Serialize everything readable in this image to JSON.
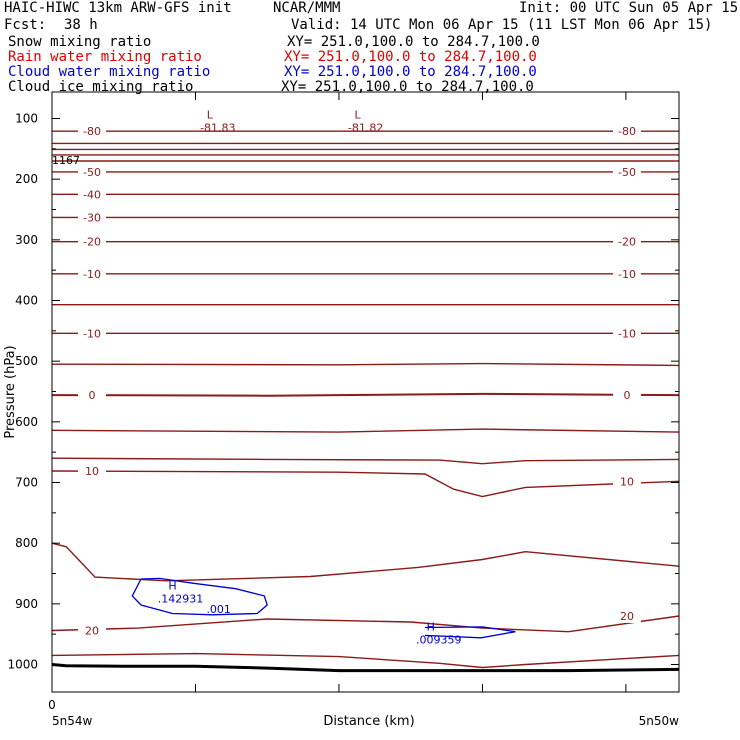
{
  "header": {
    "title_left": "HAIC-HIWC 13km ARW-GFS init",
    "title_center": "NCAR/MMM",
    "init": "Init: 00 UTC Sun 05 Apr 15",
    "fcst_label": "Fcst:",
    "fcst_value": "38 h",
    "valid": "Valid: 14 UTC Mon 06 Apr 15 (11 LST Mon 06 Apr 15)",
    "fields": [
      {
        "name": "Snow mixing ratio",
        "xy": "XY= 251.0,100.0 to 284.7,100.0",
        "color": "#000000"
      },
      {
        "name": "Rain water mixing ratio",
        "xy": "XY= 251.0,100.0 to 284.7,100.0",
        "color": "#e00000"
      },
      {
        "name": "Cloud water mixing ratio",
        "xy": "XY= 251.0,100.0 to 284.7,100.0",
        "color": "#0000d0"
      },
      {
        "name": "Cloud ice mixing ratio",
        "xy": "XY= 251.0,100.0 to 284.7,100.0",
        "color": "#000000"
      }
    ]
  },
  "chart_data": {
    "type": "line",
    "title": "",
    "xlabel": "Distance (km)",
    "ylabel": "Pressure (hPa)",
    "xlim": [
      0,
      437
    ],
    "ylim": [
      1050,
      50
    ],
    "y_ticks": [
      100,
      200,
      300,
      400,
      500,
      600,
      700,
      800,
      900,
      1000
    ],
    "x_ticks": [
      0
    ],
    "x_tick_labels": [
      "0"
    ],
    "x_end_labels": {
      "left": "5n54w",
      "right": "5n50w"
    },
    "colors": {
      "temperature": "#8b1a1a",
      "cloud_water": "#0000d0",
      "ground": "#000000"
    },
    "temperature_contours": [
      {
        "value": "-80",
        "x": [
          0,
          100,
          200,
          300,
          437
        ],
        "y": [
          121,
          121,
          121,
          121,
          121
        ]
      },
      {
        "value": "",
        "x": [
          0,
          437
        ],
        "y": [
          141,
          141
        ]
      },
      {
        "value": "",
        "x": [
          0,
          437
        ],
        "y": [
          151,
          151
        ]
      },
      {
        "value": "",
        "x": [
          0,
          437
        ],
        "y": [
          160,
          160
        ]
      },
      {
        "value": "",
        "x": [
          0,
          437
        ],
        "y": [
          170,
          170
        ]
      },
      {
        "value": "-50",
        "x": [
          0,
          437
        ],
        "y": [
          188,
          188
        ]
      },
      {
        "value": "-40",
        "x": [
          0,
          437
        ],
        "y": [
          225,
          225
        ]
      },
      {
        "value": "-30",
        "x": [
          0,
          437
        ],
        "y": [
          263,
          263
        ]
      },
      {
        "value": "-20",
        "x": [
          0,
          437
        ],
        "y": [
          303,
          303
        ]
      },
      {
        "value": "-10",
        "x": [
          0,
          437
        ],
        "y": [
          356,
          356
        ]
      },
      {
        "value": "",
        "x": [
          0,
          437
        ],
        "y": [
          407,
          407
        ]
      },
      {
        "value": "-10",
        "x": [
          0,
          437
        ],
        "y": [
          454,
          454
        ]
      },
      {
        "value": "",
        "x": [
          0,
          200,
          300,
          437
        ],
        "y": [
          505,
          506,
          504,
          507
        ]
      },
      {
        "value": "0",
        "x": [
          0,
          150,
          300,
          437
        ],
        "y": [
          556,
          557,
          554,
          556
        ]
      },
      {
        "value": "",
        "x": [
          0,
          200,
          300,
          437
        ],
        "y": [
          614,
          617,
          612,
          617
        ]
      },
      {
        "value": "",
        "x": [
          0,
          150,
          270,
          300,
          330,
          437
        ],
        "y": [
          660,
          662,
          663,
          669,
          664,
          662
        ]
      },
      {
        "value": "10",
        "x": [
          0,
          200,
          260,
          280,
          300,
          330,
          437
        ],
        "y": [
          681,
          683,
          686,
          711,
          723,
          708,
          698
        ]
      },
      {
        "value": "",
        "x": [
          0,
          10,
          30,
          80,
          180,
          255,
          300,
          330,
          437
        ],
        "y": [
          800,
          806,
          856,
          862,
          855,
          840,
          827,
          814,
          838
        ]
      },
      {
        "value": "20",
        "x": [
          0,
          60,
          150,
          250,
          300,
          360,
          437
        ],
        "y": [
          944,
          940,
          925,
          930,
          940,
          946,
          920
        ]
      },
      {
        "value": "",
        "x": [
          0,
          100,
          200,
          270,
          300,
          330,
          437
        ],
        "y": [
          985,
          982,
          987,
          998,
          1005,
          1000,
          985
        ]
      }
    ],
    "cloud_water_contours": [
      {
        "value": ".001",
        "x": [
          62,
          75,
          98,
          128,
          148,
          150,
          143,
          112,
          84,
          62,
          56,
          62
        ],
        "y": [
          859,
          858,
          866,
          875,
          887,
          902,
          916,
          918,
          916,
          902,
          887,
          859
        ]
      },
      {
        "value": "",
        "x": [
          260,
          300,
          323,
          299,
          260
        ],
        "y": [
          939,
          938,
          946,
          956,
          952
        ]
      }
    ],
    "extrema": [
      {
        "type": "L",
        "value": "-81.83",
        "x": 110,
        "y": 100,
        "color": "#8b1a1a"
      },
      {
        "type": "L",
        "value": "-81.82",
        "x": 213,
        "y": 100,
        "color": "#8b1a1a"
      },
      {
        "type": "H",
        "value": ".142931",
        "x": 84,
        "y": 876,
        "color": "#0000d0"
      },
      {
        "type": "H",
        "value": ".009359",
        "x": 264,
        "y": 944,
        "color": "#0000d0"
      }
    ],
    "side_label": "1167",
    "ground_surface": {
      "x": [
        0,
        10,
        50,
        100,
        150,
        200,
        240,
        300,
        360,
        437
      ],
      "y": [
        1000,
        1002,
        1003,
        1003,
        1006,
        1010,
        1010,
        1010,
        1010,
        1008
      ]
    }
  }
}
